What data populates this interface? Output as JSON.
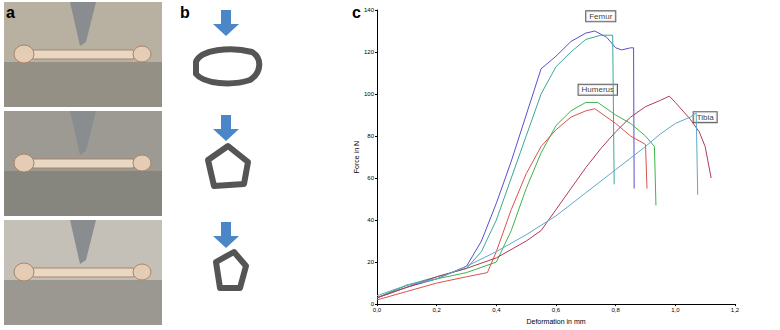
{
  "panel_labels": [
    "a",
    "b",
    "c"
  ],
  "chart_data": {
    "type": "line",
    "xlabel": "Deformation in mm",
    "ylabel": "Force in N",
    "xlim": [
      0,
      1.2
    ],
    "xticks": [
      {
        "value": 0,
        "label": "0,0"
      },
      {
        "value": 0.2,
        "label": "0,2"
      },
      {
        "value": 0.4,
        "label": "0,4"
      },
      {
        "value": 0.6,
        "label": "0,6"
      },
      {
        "value": 0.8,
        "label": "0,8"
      },
      {
        "value": 1.0,
        "label": "1,0"
      },
      {
        "value": 1.2,
        "label": "1,2"
      }
    ],
    "ylim": [
      0,
      140
    ],
    "yticks": [
      0,
      20,
      40,
      60,
      80,
      100,
      120,
      140
    ],
    "grid": false,
    "annotations": [
      {
        "text": "Femur",
        "x": 0.75,
        "y": 137
      },
      {
        "text": "Humerus",
        "x": 0.74,
        "y": 102
      },
      {
        "text": "Tibia",
        "x": 1.1,
        "y": 89
      }
    ],
    "series": [
      {
        "color": "#5a4fcf",
        "x": [
          0,
          0.1,
          0.2,
          0.3,
          0.35,
          0.4,
          0.45,
          0.5,
          0.55,
          0.6,
          0.65,
          0.7,
          0.73,
          0.77,
          0.8,
          0.82,
          0.85,
          0.86,
          0.862
        ],
        "values": [
          3,
          8,
          12,
          18,
          30,
          48,
          68,
          90,
          112,
          118,
          125,
          129,
          130,
          127,
          122,
          121,
          122,
          122,
          55
        ]
      },
      {
        "color": "#3aa89a",
        "x": [
          0,
          0.1,
          0.2,
          0.3,
          0.35,
          0.4,
          0.45,
          0.5,
          0.55,
          0.6,
          0.65,
          0.7,
          0.75,
          0.79,
          0.795
        ],
        "values": [
          3,
          9,
          13,
          17,
          25,
          40,
          60,
          80,
          100,
          113,
          120,
          126,
          128,
          128,
          57
        ]
      },
      {
        "color": "#3cb44b",
        "x": [
          0,
          0.1,
          0.2,
          0.3,
          0.4,
          0.45,
          0.5,
          0.55,
          0.6,
          0.65,
          0.7,
          0.74,
          0.8,
          0.85,
          0.9,
          0.93,
          0.935
        ],
        "values": [
          3,
          9,
          12,
          15,
          20,
          35,
          55,
          72,
          85,
          92,
          96,
          96,
          90,
          86,
          80,
          75,
          47
        ]
      },
      {
        "color": "#d9534f",
        "x": [
          0,
          0.1,
          0.2,
          0.3,
          0.37,
          0.4,
          0.45,
          0.5,
          0.55,
          0.6,
          0.65,
          0.7,
          0.73,
          0.8,
          0.85,
          0.9,
          0.905
        ],
        "values": [
          2,
          6,
          10,
          13,
          15,
          25,
          45,
          62,
          75,
          83,
          89,
          92,
          93,
          86,
          80,
          76,
          55
        ]
      },
      {
        "color": "#b03a5b",
        "x": [
          0,
          0.1,
          0.2,
          0.3,
          0.4,
          0.5,
          0.55,
          0.6,
          0.65,
          0.7,
          0.75,
          0.8,
          0.85,
          0.9,
          0.95,
          0.98,
          1.0,
          1.05,
          1.08,
          1.1,
          1.12
        ],
        "values": [
          3,
          8,
          13,
          17,
          22,
          30,
          35,
          45,
          55,
          65,
          74,
          82,
          89,
          94,
          97,
          99,
          96,
          88,
          82,
          75,
          60
        ]
      },
      {
        "color": "#5fa8c8",
        "x": [
          0,
          0.1,
          0.2,
          0.3,
          0.4,
          0.5,
          0.6,
          0.7,
          0.8,
          0.9,
          0.95,
          1.0,
          1.05,
          1.07,
          1.075
        ],
        "values": [
          4,
          9,
          12,
          18,
          25,
          33,
          42,
          53,
          64,
          75,
          81,
          86,
          89,
          91,
          52
        ]
      }
    ]
  }
}
